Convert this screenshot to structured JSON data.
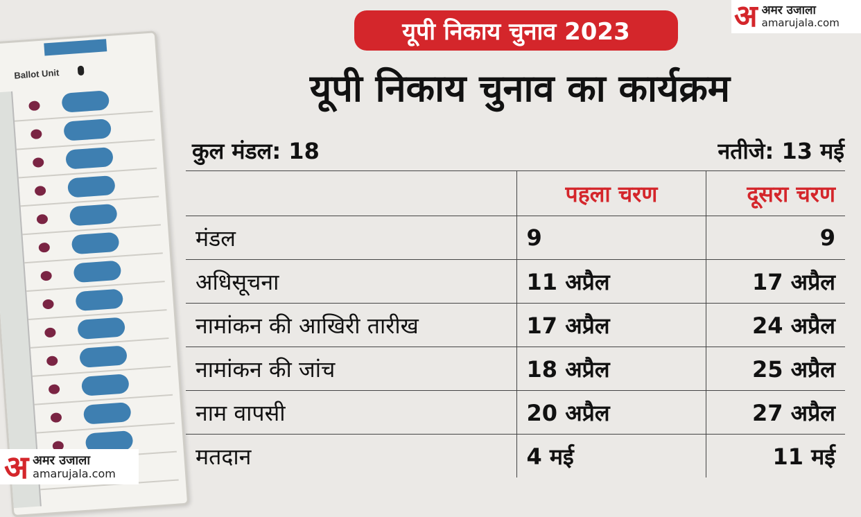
{
  "banner": "यूपी निकाय चुनाव 2023",
  "title": "यूपी निकाय चुनाव का कार्यक्रम",
  "total_divisions": "कुल मंडल: 18",
  "results": "नतीजे: 13 मई",
  "evm": {
    "label": "Ballot Unit"
  },
  "logo": {
    "mark": "अ",
    "name": "अमर उजाला",
    "url": "amarujala.com"
  },
  "table": {
    "headers": [
      "",
      "पहला चरण",
      "दूसरा चरण"
    ],
    "rows": [
      {
        "label": "मंडल",
        "phase1": "9",
        "phase2": "9"
      },
      {
        "label": "अधिसूचना",
        "phase1": "11 अप्रैल",
        "phase2": "17 अप्रैल"
      },
      {
        "label": "नामांकन की आखिरी तारीख",
        "phase1": "17 अप्रैल",
        "phase2": "24 अप्रैल"
      },
      {
        "label": "नामांकन की जांच",
        "phase1": "18 अप्रैल",
        "phase2": "25 अप्रैल"
      },
      {
        "label": "नाम वापसी",
        "phase1": "20 अप्रैल",
        "phase2": "27 अप्रैल"
      },
      {
        "label": "मतदान",
        "phase1": "4 मई",
        "phase2": "11 मई"
      }
    ]
  },
  "colors": {
    "accent": "#d4262b",
    "button_blue": "#3e7fb1",
    "led": "#7a2443"
  }
}
